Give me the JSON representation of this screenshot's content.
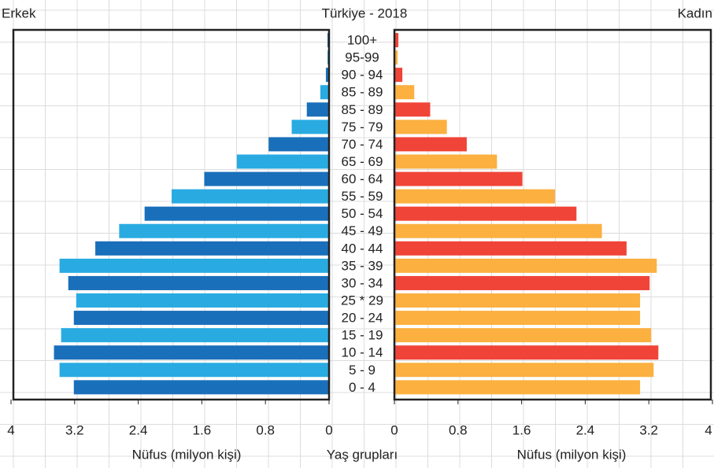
{
  "chart_data": {
    "type": "pyramid",
    "title": "Türkiye - 2018",
    "categories": [
      "100+",
      "95-99",
      "90 - 94",
      "85 - 89",
      "85 - 89",
      "75 - 79",
      "70 - 74",
      "65 - 69",
      "60 - 64",
      "55 - 59",
      "50 - 54",
      "45 - 49",
      "40 - 44",
      "35 - 39",
      "30 - 34",
      "25 * 29",
      "20 - 24",
      "15 - 19",
      "10 - 14",
      "5 - 9",
      "0 - 4"
    ],
    "series": [
      {
        "name": "Erkek",
        "colors": [
          "#1a6fba",
          "#29abe2",
          "#1a6fba",
          "#29abe2",
          "#1a6fba",
          "#29abe2",
          "#1a6fba",
          "#29abe2",
          "#1a6fba",
          "#29abe2",
          "#1a6fba",
          "#29abe2",
          "#1a6fba",
          "#29abe2",
          "#1a6fba",
          "#29abe2",
          "#1a6fba",
          "#29abe2",
          "#1a6fba",
          "#29abe2",
          "#1a6fba"
        ],
        "values": [
          0.02,
          0.02,
          0.04,
          0.11,
          0.28,
          0.47,
          0.76,
          1.16,
          1.57,
          1.98,
          2.32,
          2.64,
          2.94,
          3.39,
          3.28,
          3.18,
          3.21,
          3.37,
          3.46,
          3.39,
          3.21
        ]
      },
      {
        "name": "Kadın",
        "colors": [
          "#f04438",
          "#fbb040",
          "#f04438",
          "#fbb040",
          "#f04438",
          "#fbb040",
          "#f04438",
          "#fbb040",
          "#f04438",
          "#fbb040",
          "#f04438",
          "#fbb040",
          "#f04438",
          "#fbb040",
          "#f04438",
          "#fbb040",
          "#fbb040",
          "#fbb040",
          "#f04438",
          "#fbb040",
          "#fbb040"
        ],
        "values": [
          0.05,
          0.04,
          0.1,
          0.25,
          0.45,
          0.66,
          0.91,
          1.29,
          1.61,
          2.02,
          2.29,
          2.61,
          2.92,
          3.3,
          3.21,
          3.09,
          3.09,
          3.23,
          3.32,
          3.26,
          3.09
        ]
      }
    ],
    "xlim": [
      0,
      4
    ],
    "xticks": [
      0,
      0.8,
      1.6,
      2.4,
      3.2,
      4
    ],
    "xlabel": "Nüfus (milyon kişi)",
    "category_label": "Yaş grupları",
    "grid": true
  }
}
